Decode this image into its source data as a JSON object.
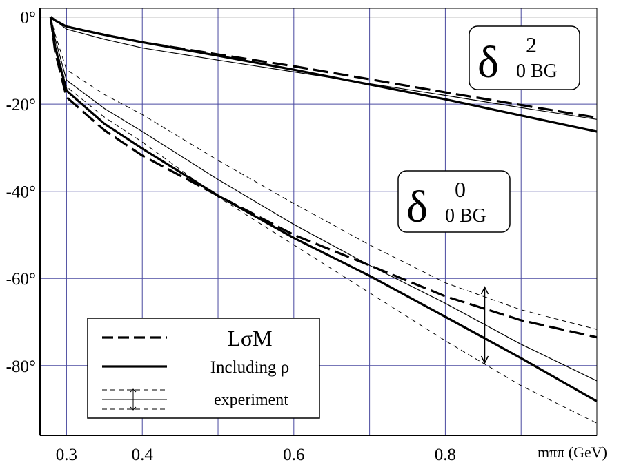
{
  "chart_data": {
    "type": "line",
    "x_label": "mππ (GeV)",
    "x": [
      0.279,
      0.285,
      0.3,
      0.35,
      0.4,
      0.5,
      0.6,
      0.7,
      0.8,
      0.9,
      1.0
    ],
    "xlim": [
      0.265,
      1.0
    ],
    "ylim": [
      -96,
      2
    ],
    "xticks": [
      0.3,
      0.4,
      0.6,
      0.8
    ],
    "xgrid": [
      0.3,
      0.4,
      0.5,
      0.6,
      0.7,
      0.8,
      0.9
    ],
    "yticks": [
      {
        "value": 0,
        "label": "0°"
      },
      {
        "value": -20,
        "label": "-20°"
      },
      {
        "value": -40,
        "label": "-40°"
      },
      {
        "value": -60,
        "label": "-60°"
      },
      {
        "value": -80,
        "label": "-80°"
      }
    ],
    "grid": true,
    "grid_color": "#4a4aa0",
    "legend": "lower left",
    "series": [
      {
        "name": "LσM",
        "color": "#000000",
        "style": "dashed",
        "width": 3.2,
        "curves": [
          [
            0,
            -0.8,
            -2.2,
            -4.1,
            -5.8,
            -8.6,
            -11.3,
            -14.3,
            -17.3,
            -20.2,
            -23.1
          ],
          [
            0,
            -8,
            -18.4,
            -26,
            -31.8,
            -41,
            -50,
            -57,
            -64.1,
            -69.6,
            -73.5
          ]
        ]
      },
      {
        "name": "Including ρ",
        "color": "#000000",
        "style": "solid",
        "width": 3.2,
        "curves": [
          [
            0,
            -0.8,
            -2.2,
            -4.1,
            -5.8,
            -8.9,
            -12.1,
            -15.5,
            -18.9,
            -22.6,
            -26.3
          ],
          [
            0,
            -7,
            -16.9,
            -24.5,
            -30.2,
            -41,
            -50.7,
            -59.4,
            -68.8,
            -78.3,
            -88.2
          ]
        ]
      },
      {
        "name": "experiment",
        "color": "#000000",
        "style": "solid",
        "width": 1.2,
        "curves": [
          [
            0,
            -0.8,
            -2.8,
            -5.1,
            -7.1,
            -9.9,
            -12.6,
            -15.3,
            -18,
            -20.8,
            -23.5
          ],
          [
            0,
            -5,
            -14.5,
            -21,
            -26.3,
            -37.3,
            -47.6,
            -57,
            -65.7,
            -75.1,
            -83.5
          ]
        ],
        "band_style": "dashed",
        "bands": [
          [
            0,
            -4,
            -12.1,
            -17.8,
            -22.4,
            -32.9,
            -42.8,
            -52.3,
            -61,
            -67.2,
            -71.7
          ],
          [
            0,
            -6,
            -16,
            -23,
            -28.7,
            -41.3,
            -52.3,
            -63.3,
            -74.3,
            -84.6,
            -93.2
          ]
        ]
      }
    ],
    "error_bar": {
      "x": 0.852,
      "high": -62,
      "low": -79.4
    },
    "annotations": [
      {
        "symbol": "δ",
        "sup": "2",
        "sub": "0 BG"
      },
      {
        "symbol": "δ",
        "sup": "0",
        "sub": "0 BG"
      }
    ]
  }
}
